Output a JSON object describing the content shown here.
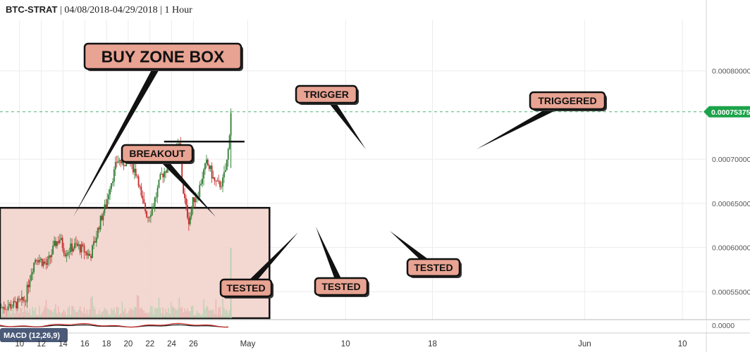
{
  "header": {
    "symbol": "BTC-STRAT",
    "range": "04/08/2018-04/29/2018",
    "interval": "1 Hour"
  },
  "colors": {
    "up": "#2e7d32",
    "down": "#c62828",
    "buy_zone_fill": "#f2d3cc",
    "callout_fill": "#e8a392",
    "last_price": "#1ca34a",
    "grid": "#ececec"
  },
  "chart_data": {
    "type": "line",
    "title": "",
    "xlabel": "",
    "ylabel": "",
    "x_ticks": [
      "10",
      "12",
      "14",
      "16",
      "18",
      "20",
      "22",
      "24",
      "26",
      "May",
      "10",
      "18",
      "Jun",
      "10"
    ],
    "x_ticks_days": [
      10,
      12,
      14,
      16,
      18,
      20,
      22,
      24,
      26,
      31,
      40,
      48,
      62,
      71
    ],
    "xlim_days": [
      8.2,
      73.2
    ],
    "y_ticks": [
      "0.00080000",
      "0.00075375",
      "0.00070000",
      "0.00065000",
      "0.00060000",
      "0.00055000"
    ],
    "y_tick_values": [
      0.0008,
      0.0007,
      0.00065,
      0.0006,
      0.00055
    ],
    "ylim": [
      0.00052,
      0.00085
    ],
    "last_price": 0.00075375,
    "last_price_label": "0.00075375",
    "series": [
      {
        "x_days": [
          8.2,
          9.5,
          10.5,
          11.0,
          11.5,
          12.0,
          12.5,
          13.0,
          13.3,
          13.7,
          14.2,
          14.8,
          15.2,
          15.8,
          16.5,
          17.0,
          17.3,
          17.7,
          18.0,
          18.3,
          18.7,
          19.0,
          19.5,
          20.0,
          20.5,
          20.9,
          21.2,
          21.5,
          21.8,
          22.2,
          22.6,
          23.0,
          23.5,
          24.0,
          24.3,
          24.7,
          25.0,
          25.3,
          25.6,
          26.0,
          26.4,
          26.8,
          27.2,
          27.5,
          27.9,
          28.3,
          28.7,
          29.0,
          29.2,
          29.45
        ],
        "values": [
          0.000532,
          0.000535,
          0.00054,
          0.00057,
          0.00059,
          0.000585,
          0.00058,
          0.000595,
          0.000605,
          0.00061,
          0.000595,
          0.0006,
          0.000602,
          0.000598,
          0.00059,
          0.00061,
          0.000625,
          0.00064,
          0.00065,
          0.00067,
          0.000685,
          0.0007,
          0.000695,
          0.0007,
          0.00069,
          0.00068,
          0.000655,
          0.000645,
          0.000635,
          0.000645,
          0.00066,
          0.00068,
          0.00069,
          0.000705,
          0.00071,
          0.000715,
          0.00067,
          0.000645,
          0.00063,
          0.000655,
          0.00066,
          0.00068,
          0.000695,
          0.00069,
          0.000675,
          0.00067,
          0.000675,
          0.00069,
          0.00071,
          0.000754
        ]
      }
    ],
    "buy_zone": {
      "x_days": [
        8.2,
        33.0
      ],
      "y": [
        0.00052,
        0.000645
      ]
    },
    "trigger_level": 0.00072,
    "annotations": [
      {
        "label": "BUY ZONE BOX",
        "target_day": 10.2,
        "target_value": 0.000645
      },
      {
        "label": "BREAKOUT",
        "target_day": 17.8,
        "target_value": 0.000645
      },
      {
        "label": "TESTED",
        "target_day": 21.3,
        "target_value": 0.00063
      },
      {
        "label": "TESTED",
        "target_day": 21.9,
        "target_value": 0.000635
      },
      {
        "label": "TESTED",
        "target_day": 25.3,
        "target_value": 0.00063
      },
      {
        "label": "TRIGGER",
        "target_day": 24.3,
        "target_value": 0.00072
      },
      {
        "label": "TRIGGERED",
        "target_day": 29.2,
        "target_value": 0.00072
      }
    ],
    "macd": {
      "label": "MACD (12,26,9)",
      "y_tick": "0.0000"
    },
    "grid": true,
    "legend": "none"
  }
}
